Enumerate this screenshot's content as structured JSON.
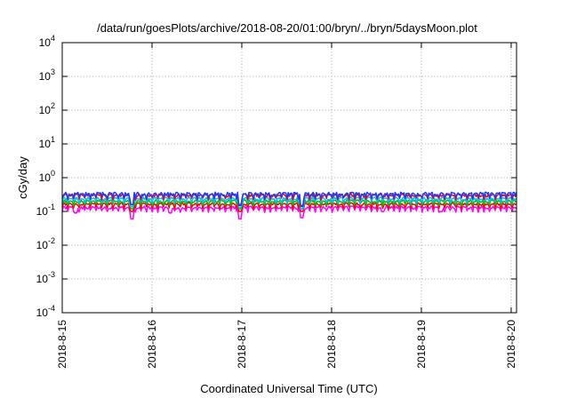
{
  "chart_data": {
    "type": "line",
    "title": "/data/run/goesPlots/archive/2018-08-20/01:00/bryn/../bryn/5daysMoon.plot",
    "xlabel": "Coordinated Universal Time (UTC)",
    "ylabel": "cGy/day",
    "yscale": "log",
    "ylim": [
      0.0001,
      10000
    ],
    "xlim": [
      0,
      5.06
    ],
    "x_unit": "days from 2018-8-15 00:00 UTC",
    "grid": true,
    "x_ticks": [
      {
        "x": 0,
        "label": "2018-8-15"
      },
      {
        "x": 1,
        "label": "2018-8-16"
      },
      {
        "x": 2,
        "label": "2018-8-17"
      },
      {
        "x": 3,
        "label": "2018-8-18"
      },
      {
        "x": 4,
        "label": "2018-8-19"
      },
      {
        "x": 5,
        "label": "2018-8-20"
      }
    ],
    "y_ticks": [
      {
        "value": 0.0001,
        "base": "10",
        "exp": "-4"
      },
      {
        "value": 0.001,
        "base": "10",
        "exp": "-3"
      },
      {
        "value": 0.01,
        "base": "10",
        "exp": "-2"
      },
      {
        "value": 0.1,
        "base": "10",
        "exp": "-1"
      },
      {
        "value": 1,
        "base": "10",
        "exp": "0"
      },
      {
        "value": 10,
        "base": "10",
        "exp": "1"
      },
      {
        "value": 100,
        "base": "10",
        "exp": "2"
      },
      {
        "value": 1000,
        "base": "10",
        "exp": "3"
      },
      {
        "value": 10000,
        "base": "10",
        "exp": "4"
      }
    ],
    "series": [
      {
        "color": "#ff00ff",
        "base": 0.13,
        "amp": 0.2,
        "dips": [
          [
            0.15,
            0.09
          ],
          [
            0.78,
            0.06
          ],
          [
            1.2,
            0.09
          ],
          [
            1.98,
            0.06
          ],
          [
            2.67,
            0.065
          ],
          [
            3.57,
            0.1
          ],
          [
            4.22,
            0.1
          ]
        ]
      },
      {
        "color": "#ff0000",
        "base": 0.165,
        "amp": 0.18,
        "dips": [
          [
            0.78,
            0.1
          ],
          [
            1.98,
            0.1
          ],
          [
            2.67,
            0.1
          ]
        ]
      },
      {
        "color": "#00c000",
        "base": 0.2,
        "amp": 0.18,
        "dips": [
          [
            0.78,
            0.12
          ],
          [
            1.98,
            0.12
          ],
          [
            2.67,
            0.12
          ]
        ]
      },
      {
        "color": "#00c0ff",
        "base": 0.24,
        "amp": 0.2,
        "dips": [
          [
            0.78,
            0.14
          ],
          [
            1.98,
            0.13
          ],
          [
            2.67,
            0.12
          ]
        ]
      },
      {
        "color": "#ff0000",
        "base": 0.3,
        "amp": 0.22,
        "dips": [
          [
            0.78,
            0.16
          ],
          [
            1.98,
            0.16
          ],
          [
            2.67,
            0.15
          ]
        ]
      },
      {
        "color": "#1a3cff",
        "base": 0.33,
        "amp": 0.23,
        "dips": [
          [
            0.78,
            0.16
          ],
          [
            1.98,
            0.15
          ],
          [
            2.67,
            0.14
          ]
        ]
      }
    ]
  }
}
